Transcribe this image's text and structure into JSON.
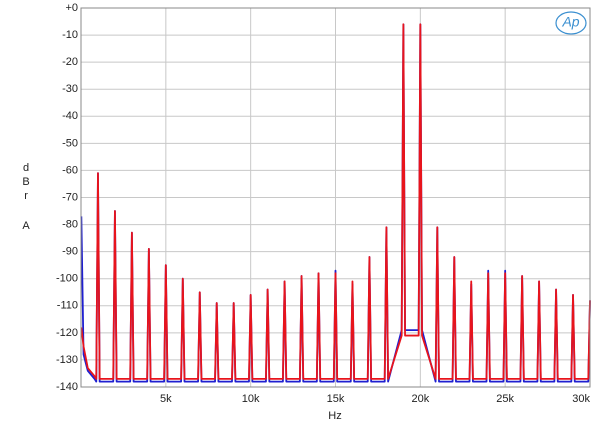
{
  "chart_data": {
    "type": "line",
    "logo": "Ap",
    "y_label": "dBr",
    "y_unit": "A",
    "x_label": "Hz",
    "xlim": [
      0,
      30000
    ],
    "xticks": [
      {
        "value": 5000,
        "label": "5k"
      },
      {
        "value": 10000,
        "label": "10k"
      },
      {
        "value": 15000,
        "label": "15k"
      },
      {
        "value": 20000,
        "label": "20k"
      },
      {
        "value": 25000,
        "label": "25k"
      },
      {
        "value": 30000,
        "label": "30k"
      }
    ],
    "ylim": [
      -140,
      0
    ],
    "yticks": [
      -140,
      -130,
      -120,
      -110,
      -100,
      -90,
      -80,
      -70,
      -60,
      -50,
      -40,
      -30,
      -20,
      -10,
      {
        "value": 0,
        "label": "+0"
      }
    ],
    "grid": true,
    "x": [
      20,
      150,
      400,
      800,
      900,
      1000,
      1100,
      1900,
      2000,
      2100,
      2900,
      3000,
      3100,
      3900,
      4000,
      4100,
      4900,
      5000,
      5100,
      5900,
      6000,
      6100,
      6900,
      7000,
      7100,
      7900,
      8000,
      8100,
      8900,
      9000,
      9100,
      9900,
      10000,
      10100,
      10900,
      11000,
      11100,
      11900,
      12000,
      12100,
      12900,
      13000,
      13100,
      13900,
      14000,
      14100,
      14900,
      15000,
      15100,
      15900,
      16000,
      16100,
      16900,
      17000,
      17100,
      17900,
      18000,
      18100,
      18900,
      19000,
      19100,
      19900,
      20000,
      20100,
      20900,
      21000,
      21100,
      21900,
      22000,
      22100,
      22900,
      23000,
      23100,
      23900,
      24000,
      24100,
      24900,
      25000,
      25100,
      25900,
      26000,
      26100,
      26900,
      27000,
      27100,
      27900,
      28000,
      28100,
      28900,
      29000,
      29100,
      29900,
      30000
    ],
    "series": [
      {
        "color": "#1f1fd0",
        "values": [
          -77,
          -128,
          -134,
          -137,
          -138,
          -61,
          -138,
          -138,
          -75,
          -138,
          -138,
          -83,
          -138,
          -138,
          -89,
          -138,
          -138,
          -95,
          -138,
          -138,
          -100,
          -138,
          -138,
          -105,
          -138,
          -138,
          -109,
          -138,
          -138,
          -109,
          -138,
          -138,
          -106,
          -138,
          -138,
          -104,
          -138,
          -138,
          -101,
          -138,
          -138,
          -99,
          -138,
          -138,
          -98,
          -138,
          -138,
          -97,
          -138,
          -138,
          -102,
          -138,
          -138,
          -92,
          -138,
          -138,
          -81,
          -138,
          -119,
          -6,
          -119,
          -119,
          -6,
          -119,
          -138,
          -81,
          -138,
          -138,
          -92,
          -138,
          -138,
          -102,
          -138,
          -138,
          -97,
          -138,
          -138,
          -97,
          -138,
          -138,
          -99,
          -138,
          -138,
          -101,
          -138,
          -138,
          -104,
          -138,
          -138,
          -106,
          -138,
          -138,
          -108
        ]
      },
      {
        "color": "#e8141c",
        "values": [
          -118,
          -125,
          -133,
          -136,
          -137,
          -61,
          -137,
          -137,
          -75,
          -137,
          -137,
          -83,
          -137,
          -137,
          -89,
          -137,
          -137,
          -95,
          -137,
          -137,
          -100,
          -137,
          -137,
          -105,
          -137,
          -137,
          -109,
          -137,
          -137,
          -109,
          -137,
          -137,
          -106,
          -137,
          -137,
          -104,
          -137,
          -137,
          -101,
          -137,
          -137,
          -99,
          -137,
          -137,
          -98,
          -137,
          -137,
          -98,
          -137,
          -137,
          -101,
          -137,
          -137,
          -92,
          -137,
          -137,
          -81,
          -137,
          -121,
          -6,
          -121,
          -121,
          -6,
          -121,
          -137,
          -81,
          -137,
          -137,
          -92,
          -137,
          -137,
          -101,
          -137,
          -137,
          -98,
          -137,
          -137,
          -98,
          -137,
          -137,
          -99,
          -137,
          -137,
          -101,
          -137,
          -137,
          -104,
          -137,
          -137,
          -106,
          -137,
          -137,
          -108
        ]
      }
    ]
  }
}
